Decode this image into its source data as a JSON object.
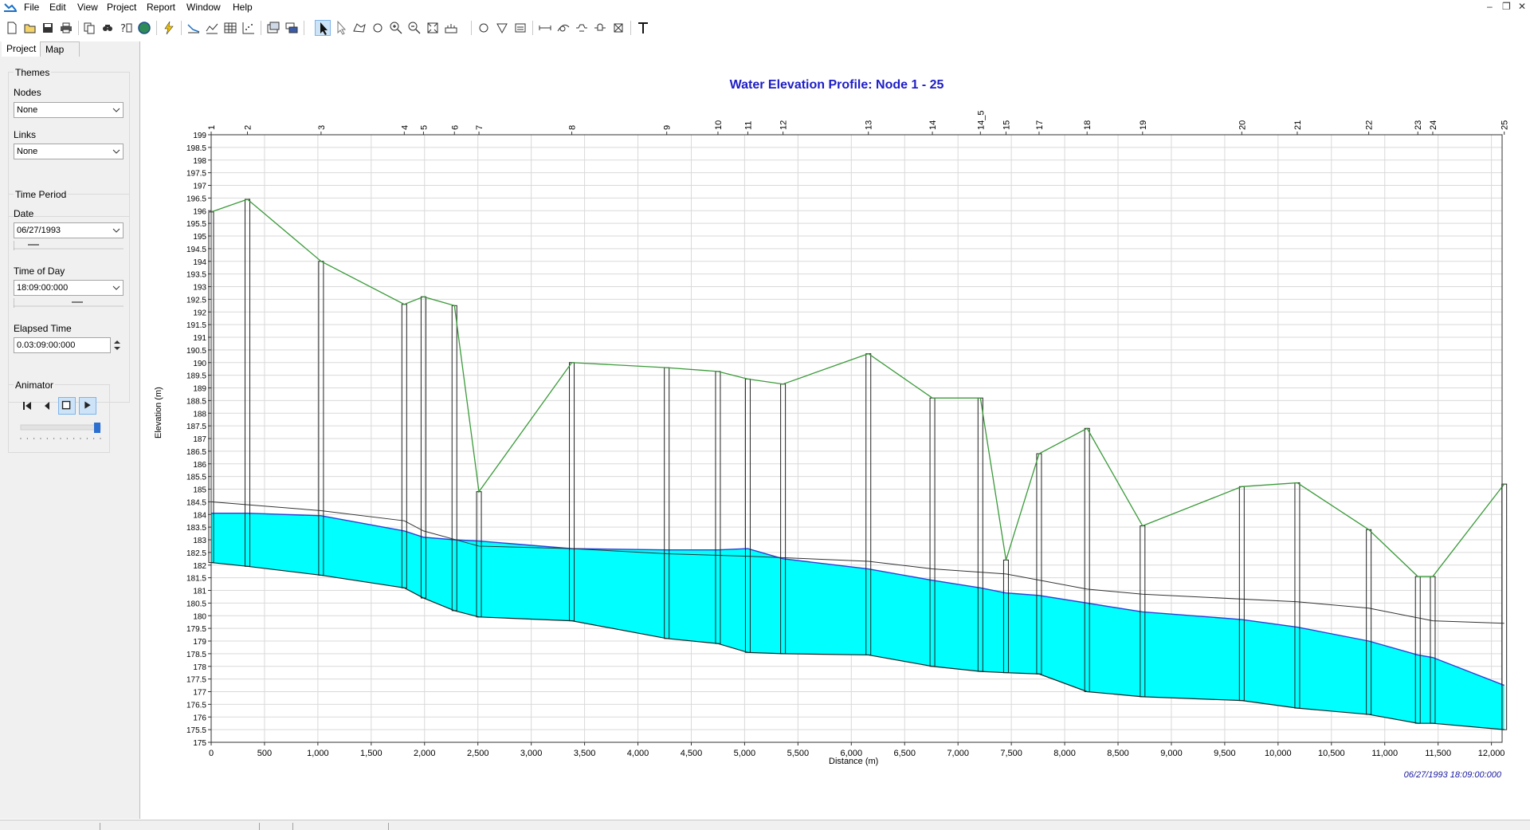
{
  "menu": {
    "items": [
      "File",
      "Edit",
      "View",
      "Project",
      "Report",
      "Window",
      "Help"
    ]
  },
  "toolbar": {
    "buttons": [
      "new-icon",
      "open-icon",
      "save-icon",
      "print-icon",
      "copy-icon",
      "find-icon",
      "query-icon",
      "globe-icon",
      "run-icon",
      "profile-icon",
      "time-series-icon",
      "table-icon",
      "scatter-icon",
      "options-icon",
      "stacked-icon",
      "select-icon",
      "vertex-icon",
      "region-icon",
      "pan-icon",
      "zoom-in-icon",
      "zoom-out-icon",
      "full-extent-icon",
      "measure-icon",
      "node-circle-icon",
      "node-triangle-icon",
      "node-storage-icon",
      "link-line-icon",
      "link-curve-icon",
      "link-weir-icon",
      "link-orifice-icon",
      "link-outlet-icon",
      "text-icon"
    ]
  },
  "panel": {
    "tabs": [
      "Project",
      "Map"
    ],
    "selected_tab": "Map",
    "themes_label": "Themes",
    "nodes_label": "Nodes",
    "nodes_value": "None",
    "links_label": "Links",
    "links_value": "None",
    "time_period_label": "Time Period",
    "date_label": "Date",
    "date_value": "06/27/1993",
    "time_of_day_label": "Time of Day",
    "time_of_day_value": "18:09:00:000",
    "elapsed_label": "Elapsed Time",
    "elapsed_value": "0.03:09:00:000",
    "animator_label": "Animator",
    "animator_speed": 1.0
  },
  "colors": {
    "water": "#00ffff",
    "ground": "#3a9a3a",
    "crown": "#333333",
    "title": "#1d1dc7"
  },
  "chart_data": {
    "type": "area",
    "title": "Water Elevation Profile: Node 1 - 25",
    "xlabel": "Distance (m)",
    "ylabel": "Elevation (m)",
    "xlim": [
      0,
      12100
    ],
    "ylim": [
      175,
      199
    ],
    "timestamp": "06/27/1993 18:09:00:000",
    "grid": true,
    "x_ticks": [
      0,
      500,
      1000,
      1500,
      2000,
      2500,
      3000,
      3500,
      4000,
      4500,
      5000,
      5500,
      6000,
      6500,
      7000,
      7500,
      8000,
      8500,
      9000,
      9500,
      10000,
      10500,
      11000,
      11500,
      12000
    ],
    "x_tick_labels": [
      "0",
      "500",
      "1,000",
      "1,500",
      "2,000",
      "2,500",
      "3,000",
      "3,500",
      "4,000",
      "4,500",
      "5,000",
      "5,500",
      "6,000",
      "6,500",
      "7,000",
      "7,500",
      "8,000",
      "8,500",
      "9,000",
      "9,500",
      "10,000",
      "10,500",
      "11,000",
      "11,500",
      "12,000"
    ],
    "y_tick_labels": [
      "175",
      "175.5",
      "176",
      "176.5",
      "177",
      "177.5",
      "178",
      "178.5",
      "179",
      "179.5",
      "180",
      "180.5",
      "181",
      "181.5",
      "182",
      "182.5",
      "183",
      "183.5",
      "184",
      "184.5",
      "185",
      "185.5",
      "186",
      "186.5",
      "187",
      "187.5",
      "188",
      "188.5",
      "189",
      "189.5",
      "190",
      "190.5",
      "191",
      "191.5",
      "192",
      "192.5",
      "193",
      "193.5",
      "194",
      "194.5",
      "195",
      "195.5",
      "196",
      "196.5",
      "197",
      "197.5",
      "198",
      "198.5",
      "199"
    ],
    "nodes": [
      {
        "name": "1",
        "x": 0,
        "invert": 182.1,
        "ground": 195.95,
        "water": 184.05
      },
      {
        "name": "2",
        "x": 340,
        "invert": 181.95,
        "ground": 196.45,
        "water": 184.05
      },
      {
        "name": "3",
        "x": 1030,
        "invert": 181.6,
        "ground": 194.0,
        "water": 183.95
      },
      {
        "name": "4",
        "x": 1810,
        "invert": 181.1,
        "ground": 192.3,
        "water": 183.35
      },
      {
        "name": "5",
        "x": 1990,
        "invert": 180.7,
        "ground": 192.6,
        "water": 183.1
      },
      {
        "name": "6",
        "x": 2280,
        "invert": 180.2,
        "ground": 192.25,
        "water": 183.0
      },
      {
        "name": "7",
        "x": 2510,
        "invert": 179.95,
        "ground": 184.9,
        "water": 182.95
      },
      {
        "name": "8",
        "x": 3380,
        "invert": 179.8,
        "ground": 190.0,
        "water": 182.65
      },
      {
        "name": "9",
        "x": 4270,
        "invert": 179.1,
        "ground": 189.8,
        "water": 182.6
      },
      {
        "name": "10",
        "x": 4750,
        "invert": 178.9,
        "ground": 189.65,
        "water": 182.6
      },
      {
        "name": "11",
        "x": 5030,
        "invert": 178.55,
        "ground": 189.35,
        "water": 182.65
      },
      {
        "name": "12",
        "x": 5360,
        "invert": 178.5,
        "ground": 189.15,
        "water": 182.25
      },
      {
        "name": "13",
        "x": 6160,
        "invert": 178.45,
        "ground": 190.35,
        "water": 181.85
      },
      {
        "name": "14",
        "x": 6760,
        "invert": 178.0,
        "ground": 188.6,
        "water": 181.4
      },
      {
        "name": "14_5",
        "x": 7210,
        "invert": 177.8,
        "ground": 188.6,
        "water": 181.1
      },
      {
        "name": "15",
        "x": 7450,
        "invert": 177.75,
        "ground": 182.2,
        "water": 180.9
      },
      {
        "name": "17",
        "x": 7760,
        "invert": 177.7,
        "ground": 186.4,
        "water": 180.8
      },
      {
        "name": "18",
        "x": 8210,
        "invert": 177.0,
        "ground": 187.4,
        "water": 180.5
      },
      {
        "name": "19",
        "x": 8730,
        "invert": 176.8,
        "ground": 183.55,
        "water": 180.15
      },
      {
        "name": "20",
        "x": 9660,
        "invert": 176.65,
        "ground": 185.1,
        "water": 179.85
      },
      {
        "name": "21",
        "x": 10180,
        "invert": 176.35,
        "ground": 185.25,
        "water": 179.55
      },
      {
        "name": "22",
        "x": 10850,
        "invert": 176.1,
        "ground": 183.4,
        "water": 179.0
      },
      {
        "name": "23",
        "x": 11310,
        "invert": 175.75,
        "ground": 181.55,
        "water": 178.45
      },
      {
        "name": "24",
        "x": 11450,
        "invert": 175.75,
        "ground": 181.55,
        "water": 178.35
      },
      {
        "name": "25",
        "x": 12120,
        "invert": 175.5,
        "ground": 185.2,
        "water": 177.25
      }
    ],
    "crown": [
      {
        "x": 0,
        "y": 184.5
      },
      {
        "x": 1030,
        "y": 184.15
      },
      {
        "x": 1810,
        "y": 183.75
      },
      {
        "x": 1990,
        "y": 183.35
      },
      {
        "x": 2510,
        "y": 182.75
      },
      {
        "x": 3380,
        "y": 182.65
      },
      {
        "x": 4270,
        "y": 182.45
      },
      {
        "x": 5030,
        "y": 182.35
      },
      {
        "x": 6160,
        "y": 182.15
      },
      {
        "x": 6760,
        "y": 181.85
      },
      {
        "x": 7450,
        "y": 181.65
      },
      {
        "x": 8210,
        "y": 181.05
      },
      {
        "x": 8730,
        "y": 180.85
      },
      {
        "x": 10180,
        "y": 180.55
      },
      {
        "x": 10850,
        "y": 180.3
      },
      {
        "x": 11450,
        "y": 179.8
      },
      {
        "x": 12120,
        "y": 179.7
      }
    ]
  }
}
